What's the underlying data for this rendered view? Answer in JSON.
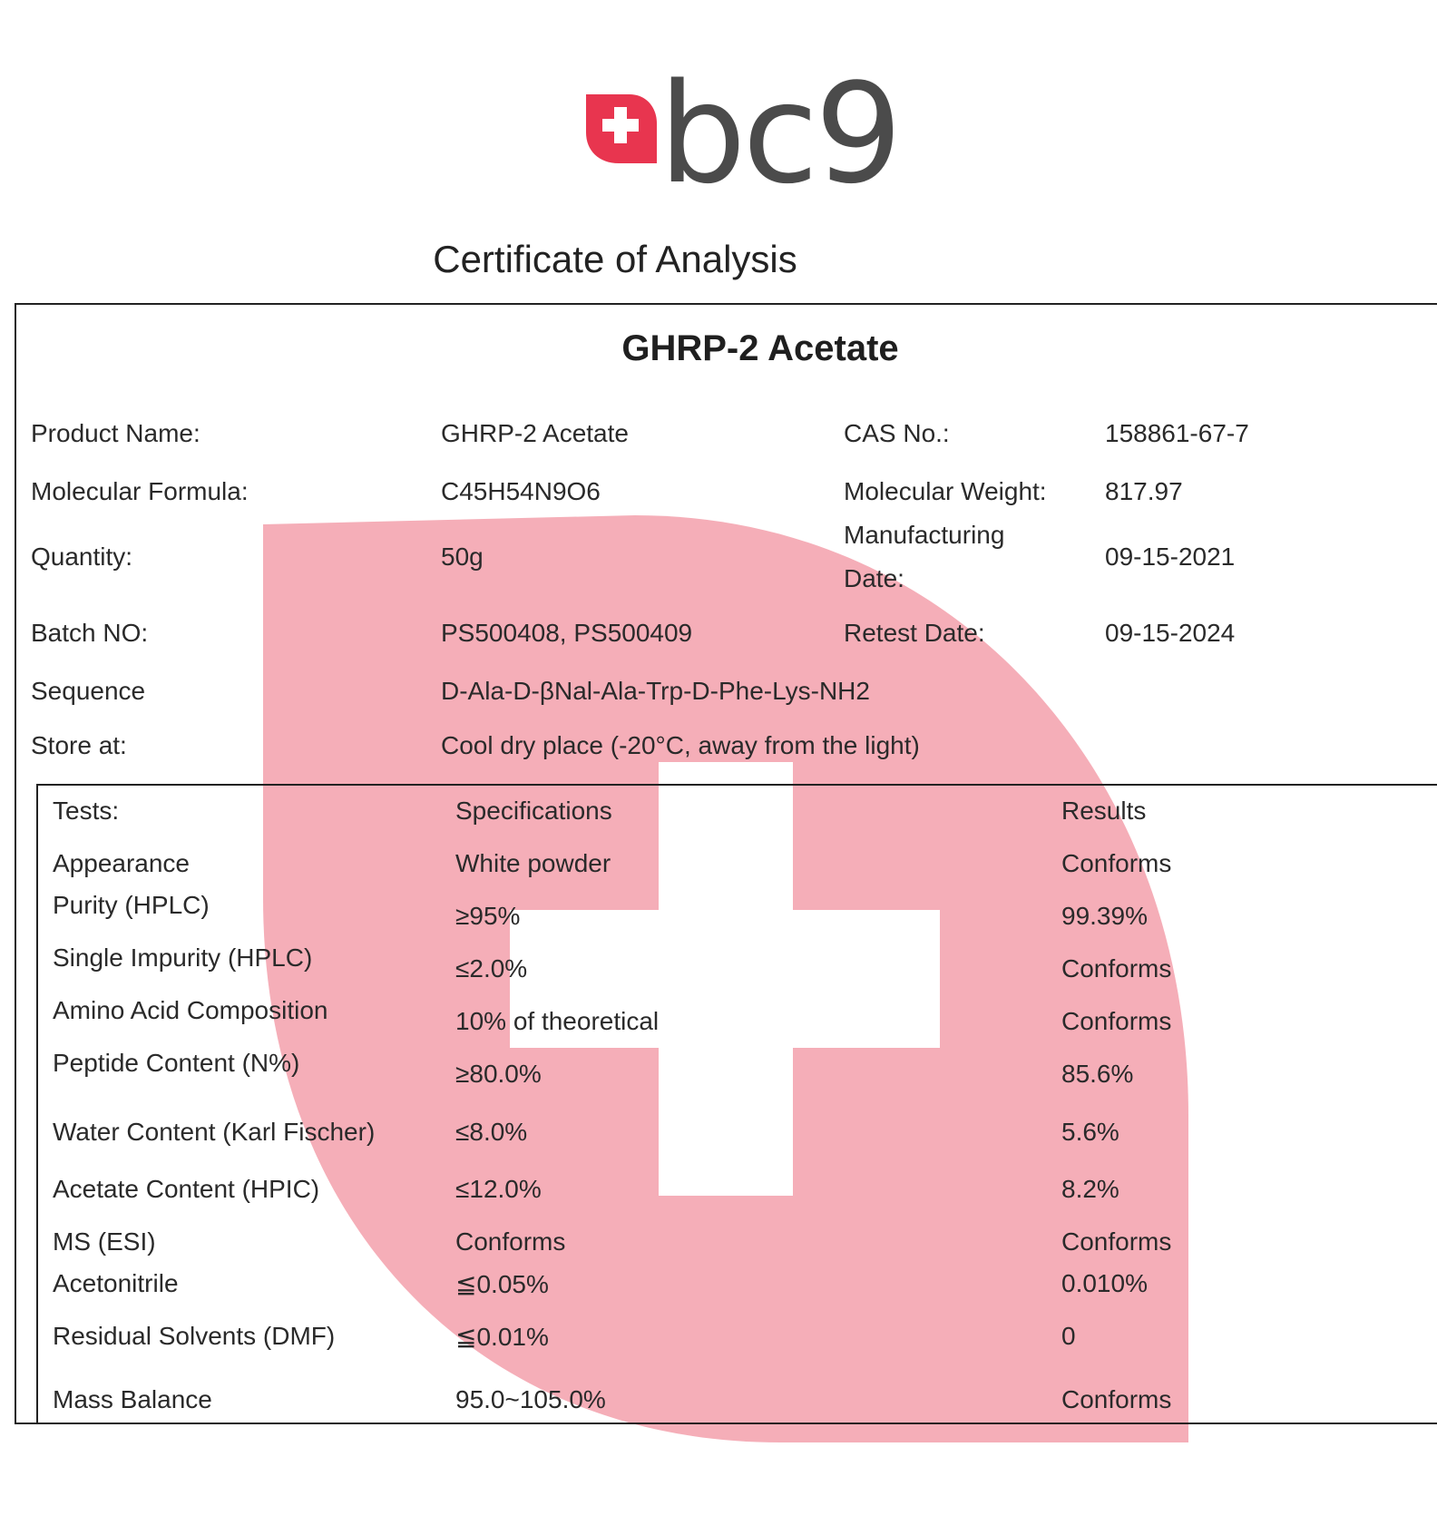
{
  "brand": {
    "name": "bc9",
    "accent_color": "#e8354f",
    "watermark_color": "#f4a7b2",
    "logo_icon": "plus-badge-icon"
  },
  "document": {
    "title": "Certificate of Analysis",
    "product_heading": "GHRP-2 Acetate"
  },
  "info": {
    "product_name_label": "Product Name:",
    "product_name_value": "GHRP-2 Acetate",
    "cas_label": "CAS No.:",
    "cas_value": "158861-67-7",
    "formula_label": "Molecular Formula:",
    "formula_value": "C45H54N9O6",
    "weight_label": "Molecular Weight:",
    "weight_value": "817.97",
    "quantity_label": "Quantity:",
    "quantity_value": "50g",
    "mfg_label_line1": "Manufacturing",
    "mfg_label_line2": "Date:",
    "mfg_value": "09-15-2021",
    "batch_label": "Batch NO:",
    "batch_value": "PS500408, PS500409",
    "retest_label": "Retest Date:",
    "retest_value": "09-15-2024",
    "sequence_label": "Sequence",
    "sequence_value": "D-Ala-D-βNal-Ala-Trp-D-Phe-Lys-NH2",
    "store_label": "Store at:",
    "store_value": "Cool dry place (-20°C, away from the light)"
  },
  "tests": {
    "headers": {
      "test": "Tests:",
      "spec": "Specifications",
      "result": "Results"
    },
    "rows": [
      {
        "test": "Appearance",
        "spec": "White powder",
        "result": "Conforms"
      },
      {
        "test": "Purity (HPLC)",
        "spec": "≥95%",
        "result": "99.39%"
      },
      {
        "test": "Single Impurity (HPLC)",
        "spec": "≤2.0%",
        "result": "Conforms"
      },
      {
        "test": "Amino Acid Composition",
        "spec": "10% of theoretical",
        "result": "Conforms"
      },
      {
        "test": "Peptide Content (N%)",
        "spec": "≥80.0%",
        "result": "85.6%"
      },
      {
        "test": "Water Content (Karl Fischer)",
        "spec": "≤8.0%",
        "result": "5.6%"
      },
      {
        "test": "Acetate Content (HPIC)",
        "spec": "≤12.0%",
        "result": "8.2%"
      },
      {
        "test": "MS (ESI)",
        "spec": "Conforms",
        "result": "Conforms"
      },
      {
        "test": "Acetonitrile",
        "spec": "≦0.05%",
        "result": "0.010%"
      },
      {
        "test": "Residual Solvents (DMF)",
        "spec": "≦0.01%",
        "result": "0"
      },
      {
        "test": "Mass Balance",
        "spec": "95.0~105.0%",
        "result": "Conforms"
      }
    ]
  }
}
